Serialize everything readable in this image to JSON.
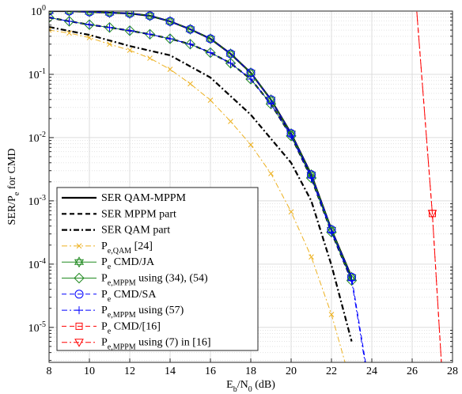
{
  "chart_data": {
    "type": "line",
    "xlabel": "E_{b}/N_{0} (dB)",
    "ylabel": "SER/P_{e} for CMD",
    "xlim": [
      8,
      28
    ],
    "xticks": [
      8,
      10,
      12,
      14,
      16,
      18,
      20,
      22,
      24,
      26,
      28
    ],
    "ylim": [
      2.8e-06,
      1
    ],
    "log_y": true,
    "grid": true,
    "yticks": [
      {
        "value": 1,
        "label": "10^{0}"
      },
      {
        "value": 0.1,
        "label": "10^{-1}"
      },
      {
        "value": 0.01,
        "label": "10^{-2}"
      },
      {
        "value": 0.001,
        "label": "10^{-3}"
      },
      {
        "value": 0.0001,
        "label": "10^{-4}"
      },
      {
        "value": 1e-05,
        "label": "10^{-5}"
      }
    ],
    "legend": "lower left",
    "series": [
      {
        "name": "SER QAM-MPPM",
        "color": "#000000",
        "dash": "solid",
        "width": 2.2,
        "marker": "none",
        "x": [
          8,
          9,
          10,
          11,
          12,
          13,
          14,
          15,
          16,
          17,
          18,
          19,
          20,
          21,
          22,
          23
        ],
        "values": [
          1,
          1,
          0.97,
          0.944,
          0.917,
          0.841,
          0.688,
          0.516,
          0.365,
          0.211,
          0.106,
          0.0398,
          0.0116,
          0.0026,
          0.00035,
          6.2e-05
        ]
      },
      {
        "name": "SER MPPM part",
        "color": "#000000",
        "dash": "dashed",
        "width": 2.2,
        "marker": "none",
        "x": [
          8,
          9,
          10,
          11,
          12,
          13,
          14,
          15,
          16,
          17,
          18,
          19,
          20,
          21,
          22,
          23
        ],
        "values": [
          0.79,
          0.69,
          0.61,
          0.55,
          0.49,
          0.43,
          0.365,
          0.3,
          0.22,
          0.15,
          0.084,
          0.034,
          0.0106,
          0.0023,
          0.00032,
          5.5e-05
        ]
      },
      {
        "name": "SER QAM part",
        "color": "#000000",
        "dash": "dashdot",
        "width": 2.2,
        "marker": "none",
        "x": [
          8,
          10,
          12,
          14,
          16,
          18,
          20,
          21,
          22,
          23
        ],
        "values": [
          0.56,
          0.42,
          0.28,
          0.2,
          0.089,
          0.023,
          0.004,
          0.001,
          9.6e-05,
          6e-06
        ]
      },
      {
        "name": "P_{e,QAM} [24]",
        "color": "#edb120",
        "dash": "dashdot",
        "width": 1,
        "marker": "x",
        "x": [
          8,
          9,
          10,
          11,
          12,
          13,
          14,
          15,
          16,
          17,
          18,
          19,
          20,
          21,
          22,
          23
        ],
        "values": [
          0.5,
          0.45,
          0.38,
          0.3,
          0.24,
          0.18,
          0.12,
          0.071,
          0.039,
          0.018,
          0.0077,
          0.0027,
          0.00067,
          0.00013,
          1.6e-05,
          1.2e-06
        ]
      },
      {
        "name": "P_{e} CMD/JA",
        "color": "#218a21",
        "dash": "solid",
        "width": 1,
        "marker": "hexagram",
        "x": [
          8,
          9,
          10,
          11,
          12,
          13,
          14,
          15,
          16,
          17,
          18,
          19,
          20,
          21,
          22,
          23
        ],
        "values": [
          1,
          1,
          0.97,
          0.944,
          0.917,
          0.841,
          0.688,
          0.516,
          0.365,
          0.211,
          0.106,
          0.0398,
          0.0116,
          0.0026,
          0.00035,
          6.2e-05
        ]
      },
      {
        "name": "P_{e,MPPM} using (34), (54)",
        "color": "#218a21",
        "dash": "solid",
        "width": 1,
        "marker": "diamond",
        "x": [
          8,
          9,
          10,
          11,
          12,
          13,
          14,
          15,
          16,
          17,
          18,
          19,
          20,
          21,
          22,
          23
        ],
        "values": [
          0.79,
          0.69,
          0.61,
          0.55,
          0.49,
          0.43,
          0.365,
          0.3,
          0.22,
          0.15,
          0.084,
          0.034,
          0.0106,
          0.0023,
          0.00032,
          5.5e-05
        ]
      },
      {
        "name": "P_{e} CMD/SA",
        "color": "#0000ff",
        "dash": "dashed",
        "width": 1,
        "marker": "circle",
        "x": [
          8,
          9,
          10,
          11,
          12,
          13,
          14,
          15,
          16,
          17,
          18,
          19,
          20,
          21,
          22,
          23,
          24
        ],
        "values": [
          1,
          1,
          0.97,
          0.944,
          0.917,
          0.841,
          0.688,
          0.516,
          0.365,
          0.211,
          0.106,
          0.0398,
          0.0116,
          0.0026,
          0.00035,
          6.2e-05,
          7e-07
        ]
      },
      {
        "name": "P_{e,MPPM} using (57)",
        "color": "#0000ff",
        "dash": "dashdot",
        "width": 1,
        "marker": "plus",
        "x": [
          8,
          9,
          10,
          11,
          12,
          13,
          14,
          15,
          16,
          17,
          18,
          19,
          20,
          21,
          22,
          23,
          24
        ],
        "values": [
          0.79,
          0.69,
          0.61,
          0.55,
          0.49,
          0.43,
          0.365,
          0.3,
          0.22,
          0.15,
          0.084,
          0.034,
          0.0106,
          0.0023,
          0.00032,
          5.5e-05,
          6e-07
        ]
      },
      {
        "name": "P_{e} CMD/[16]",
        "color": "#ff0000",
        "dash": "dashed",
        "width": 1,
        "marker": "square",
        "x": [
          26.2,
          27,
          27.5
        ],
        "values": [
          1.3,
          0.00063,
          1.5e-06
        ]
      },
      {
        "name": "P_{e,MPPM} using (7) in [16]",
        "color": "#ff0000",
        "dash": "dashdot",
        "width": 1,
        "marker": "triangle-down",
        "x": [
          26.2,
          27,
          27.5
        ],
        "values": [
          1.3,
          0.00063,
          1.5e-06
        ]
      }
    ]
  }
}
